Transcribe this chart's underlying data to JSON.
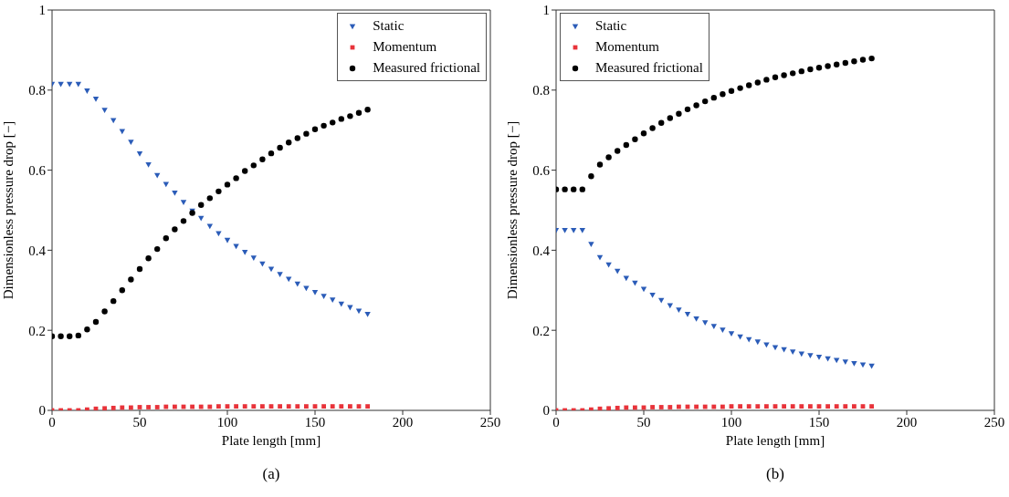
{
  "chart_data": [
    {
      "type": "scatter",
      "xlabel": "Plate length [mm]",
      "ylabel": "Dimensionless pressure drop [−]",
      "xlim": [
        0,
        250
      ],
      "xticks": [
        0,
        50,
        100,
        150,
        200,
        250
      ],
      "ylim": [
        0,
        1
      ],
      "yticks": [
        0,
        0.2,
        0.4,
        0.6,
        0.8,
        1
      ],
      "legend": "top right",
      "annotations": [
        "(a)"
      ],
      "x": [
        0,
        5,
        10,
        15,
        20,
        25,
        30,
        35,
        40,
        45,
        50,
        55,
        60,
        65,
        70,
        75,
        80,
        85,
        90,
        95,
        100,
        105,
        110,
        115,
        120,
        125,
        130,
        135,
        140,
        145,
        150,
        155,
        160,
        165,
        170,
        175,
        180
      ],
      "series": [
        {
          "name": "Static",
          "color": "#2b5cb8",
          "marker": "triangle",
          "values": [
            0.815,
            0.815,
            0.815,
            0.815,
            0.798,
            0.778,
            0.75,
            0.724,
            0.697,
            0.67,
            0.641,
            0.614,
            0.587,
            0.565,
            0.543,
            0.52,
            0.498,
            0.48,
            0.46,
            0.442,
            0.425,
            0.41,
            0.395,
            0.381,
            0.366,
            0.353,
            0.34,
            0.328,
            0.316,
            0.305,
            0.295,
            0.285,
            0.276,
            0.266,
            0.257,
            0.248,
            0.24
          ]
        },
        {
          "name": "Momentum",
          "color": "#e8333a",
          "marker": "square",
          "values": [
            0,
            0,
            0,
            0,
            0.002,
            0.004,
            0.005,
            0.006,
            0.007,
            0.007,
            0.008,
            0.008,
            0.008,
            0.009,
            0.009,
            0.009,
            0.009,
            0.009,
            0.009,
            0.01,
            0.01,
            0.01,
            0.01,
            0.01,
            0.01,
            0.01,
            0.01,
            0.01,
            0.01,
            0.01,
            0.01,
            0.01,
            0.01,
            0.01,
            0.01,
            0.01,
            0.01
          ]
        },
        {
          "name": "Measured frictional",
          "color": "#000000",
          "marker": "circle",
          "values": [
            0.185,
            0.185,
            0.185,
            0.187,
            0.202,
            0.221,
            0.247,
            0.273,
            0.3,
            0.327,
            0.353,
            0.38,
            0.403,
            0.43,
            0.452,
            0.473,
            0.493,
            0.513,
            0.53,
            0.547,
            0.564,
            0.58,
            0.598,
            0.612,
            0.627,
            0.642,
            0.656,
            0.669,
            0.68,
            0.691,
            0.702,
            0.711,
            0.719,
            0.728,
            0.735,
            0.743,
            0.751
          ]
        }
      ]
    },
    {
      "type": "scatter",
      "xlabel": "Plate length [mm]",
      "ylabel": "Dimensionless pressure drop [−]",
      "xlim": [
        0,
        250
      ],
      "xticks": [
        0,
        50,
        100,
        150,
        200,
        250
      ],
      "ylim": [
        0,
        1
      ],
      "yticks": [
        0,
        0.2,
        0.4,
        0.6,
        0.8,
        1
      ],
      "legend": "top left",
      "annotations": [
        "(b)"
      ],
      "x": [
        0,
        5,
        10,
        15,
        20,
        25,
        30,
        35,
        40,
        45,
        50,
        55,
        60,
        65,
        70,
        75,
        80,
        85,
        90,
        95,
        100,
        105,
        110,
        115,
        120,
        125,
        130,
        135,
        140,
        145,
        150,
        155,
        160,
        165,
        170,
        175,
        180
      ],
      "series": [
        {
          "name": "Static",
          "color": "#2b5cb8",
          "marker": "triangle",
          "values": [
            0.45,
            0.45,
            0.45,
            0.45,
            0.415,
            0.382,
            0.364,
            0.348,
            0.33,
            0.318,
            0.303,
            0.288,
            0.275,
            0.262,
            0.251,
            0.24,
            0.229,
            0.219,
            0.21,
            0.201,
            0.192,
            0.184,
            0.177,
            0.171,
            0.164,
            0.157,
            0.152,
            0.146,
            0.141,
            0.137,
            0.133,
            0.129,
            0.125,
            0.121,
            0.117,
            0.114,
            0.111
          ]
        },
        {
          "name": "Momentum",
          "color": "#e8333a",
          "marker": "square",
          "values": [
            0,
            0,
            0,
            0,
            0.002,
            0.004,
            0.005,
            0.006,
            0.007,
            0.007,
            0.007,
            0.008,
            0.008,
            0.008,
            0.009,
            0.009,
            0.009,
            0.009,
            0.009,
            0.009,
            0.01,
            0.01,
            0.01,
            0.01,
            0.01,
            0.01,
            0.01,
            0.01,
            0.01,
            0.01,
            0.01,
            0.01,
            0.01,
            0.01,
            0.01,
            0.01,
            0.01
          ]
        },
        {
          "name": "Measured frictional",
          "color": "#000000",
          "marker": "circle",
          "values": [
            0.552,
            0.552,
            0.552,
            0.552,
            0.585,
            0.614,
            0.632,
            0.648,
            0.663,
            0.677,
            0.692,
            0.705,
            0.718,
            0.73,
            0.741,
            0.752,
            0.762,
            0.772,
            0.781,
            0.79,
            0.798,
            0.805,
            0.812,
            0.819,
            0.826,
            0.832,
            0.837,
            0.842,
            0.847,
            0.852,
            0.856,
            0.86,
            0.864,
            0.868,
            0.872,
            0.876,
            0.879
          ]
        }
      ]
    }
  ]
}
